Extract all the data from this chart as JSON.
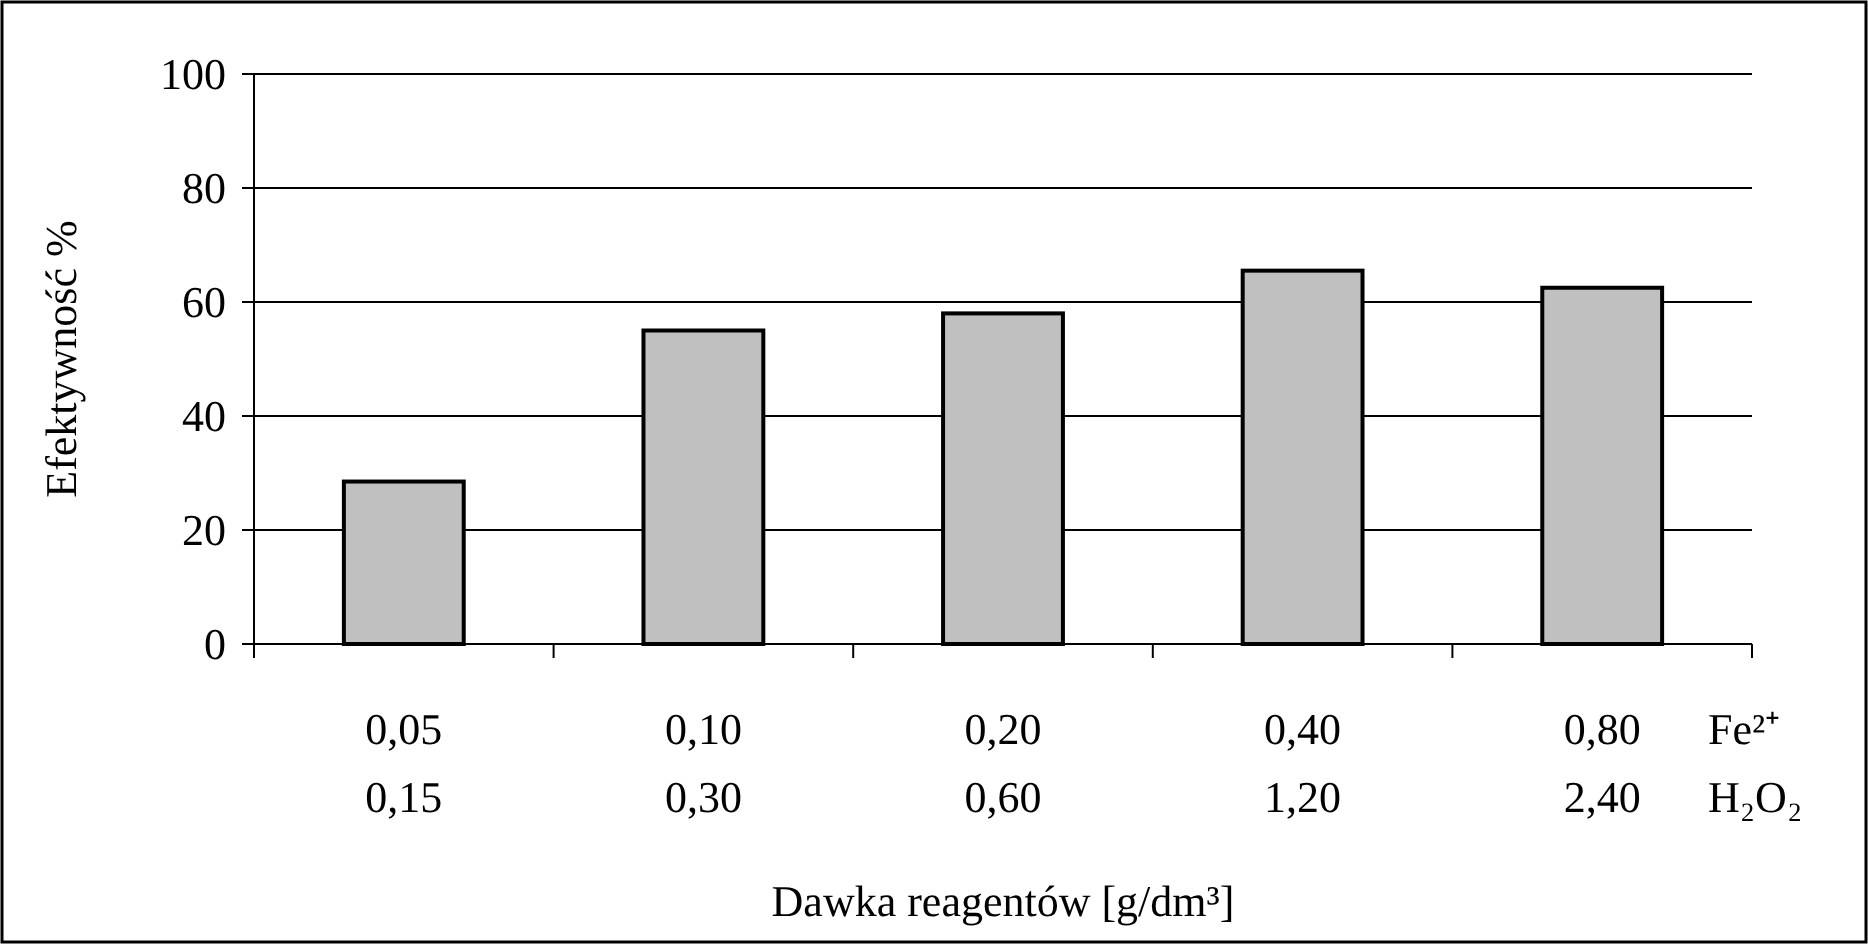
{
  "chart_data": {
    "type": "bar",
    "categories": [
      "0,05\n0,15",
      "0,10\n0,30",
      "0,20\n0,60",
      "0,40\n1,20",
      "0,80\n2,40"
    ],
    "values": [
      28.5,
      55,
      58,
      65.5,
      62.5
    ],
    "color": "#c0c0c0",
    "ylabel": "Efektywność %",
    "xlabel": "Dawka reagentów [g/dm³]",
    "ylim": [
      0,
      100
    ],
    "yticks": [
      0,
      20,
      40,
      60,
      80,
      100
    ],
    "grid": "y",
    "annotations": [
      "Fe²⁺",
      "H₂O₂"
    ]
  }
}
